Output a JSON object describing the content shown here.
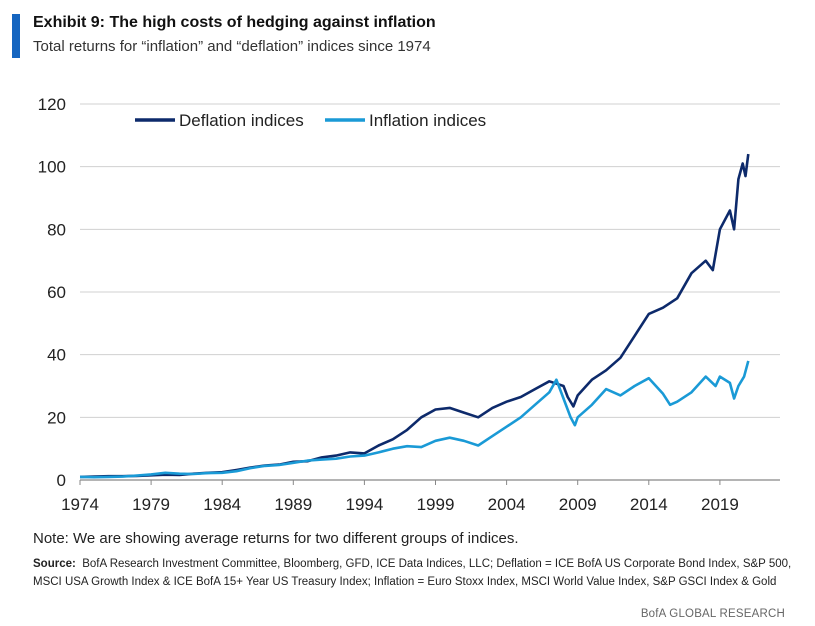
{
  "header": {
    "title": "Exhibit 9: The high costs of hedging against inflation",
    "subtitle": "Total returns for “inflation” and “deflation” indices since 1974"
  },
  "footer": {
    "note": "Note: We are showing average returns for two different groups of indices.",
    "source_label": "Source:",
    "source_text": "BofA Research Investment Committee, Bloomberg, GFD, ICE Data Indices, LLC; Deflation = ICE BofA US Corporate Bond Index, S&P 500, MSCI USA Growth Index & ICE BofA 15+ Year US Treasury Index; Inflation = Euro Stoxx Index, MSCI World Value Index, S&P GSCI Index & Gold",
    "credit": "BofA GLOBAL RESEARCH"
  },
  "colors": {
    "accent": "#1565c0",
    "deflation": "#0d2a6b",
    "inflation": "#1a9ad6",
    "grid": "#d0d0d0"
  },
  "chart_data": {
    "type": "line",
    "title": "",
    "xlabel": "",
    "ylabel": "",
    "xlim": [
      1974,
      2021
    ],
    "ylim": [
      0,
      120
    ],
    "xticks": [
      "1974",
      "1979",
      "1984",
      "1989",
      "1994",
      "1999",
      "2004",
      "2009",
      "2014",
      "2019"
    ],
    "yticks": [
      "0",
      "20",
      "40",
      "60",
      "80",
      "100",
      "120"
    ],
    "grid": "horizontal",
    "legend_position": "top-left",
    "series": [
      {
        "name": "Deflation indices",
        "color": "#0d2a6b",
        "points": [
          [
            1974,
            1.0
          ],
          [
            1975,
            1.1
          ],
          [
            1976,
            1.2
          ],
          [
            1977,
            1.2
          ],
          [
            1978,
            1.3
          ],
          [
            1979,
            1.5
          ],
          [
            1980,
            1.7
          ],
          [
            1981,
            1.6
          ],
          [
            1982,
            2.0
          ],
          [
            1983,
            2.3
          ],
          [
            1984,
            2.5
          ],
          [
            1985,
            3.2
          ],
          [
            1986,
            4.0
          ],
          [
            1987,
            4.6
          ],
          [
            1988,
            4.9
          ],
          [
            1989,
            5.8
          ],
          [
            1990,
            6.0
          ],
          [
            1991,
            7.2
          ],
          [
            1992,
            7.8
          ],
          [
            1993,
            8.8
          ],
          [
            1994,
            8.5
          ],
          [
            1995,
            11.0
          ],
          [
            1996,
            13.0
          ],
          [
            1997,
            16.0
          ],
          [
            1998,
            20.0
          ],
          [
            1999,
            22.5
          ],
          [
            2000,
            23.0
          ],
          [
            2001,
            21.5
          ],
          [
            2002,
            20.0
          ],
          [
            2003,
            23.0
          ],
          [
            2004,
            25.0
          ],
          [
            2005,
            26.5
          ],
          [
            2006,
            29.0
          ],
          [
            2007,
            31.5
          ],
          [
            2008,
            30.0
          ],
          [
            2008.3,
            26.5
          ],
          [
            2008.7,
            23.5
          ],
          [
            2009,
            27.0
          ],
          [
            2010,
            32.0
          ],
          [
            2011,
            35.0
          ],
          [
            2012,
            39.0
          ],
          [
            2013,
            46.0
          ],
          [
            2014,
            53.0
          ],
          [
            2015,
            55.0
          ],
          [
            2016,
            58.0
          ],
          [
            2017,
            66.0
          ],
          [
            2018,
            70.0
          ],
          [
            2018.5,
            67.0
          ],
          [
            2019,
            80.0
          ],
          [
            2019.7,
            86.0
          ],
          [
            2020.0,
            80.0
          ],
          [
            2020.3,
            96.0
          ],
          [
            2020.6,
            101.0
          ],
          [
            2020.8,
            97.0
          ],
          [
            2021,
            104.0
          ]
        ]
      },
      {
        "name": "Inflation indices",
        "color": "#1a9ad6",
        "points": [
          [
            1974,
            1.0
          ],
          [
            1975,
            0.9
          ],
          [
            1976,
            1.0
          ],
          [
            1977,
            1.1
          ],
          [
            1978,
            1.4
          ],
          [
            1979,
            1.8
          ],
          [
            1980,
            2.3
          ],
          [
            1981,
            2.0
          ],
          [
            1982,
            1.9
          ],
          [
            1983,
            2.2
          ],
          [
            1984,
            2.3
          ],
          [
            1985,
            2.8
          ],
          [
            1986,
            3.8
          ],
          [
            1987,
            4.5
          ],
          [
            1988,
            4.8
          ],
          [
            1989,
            5.5
          ],
          [
            1990,
            6.2
          ],
          [
            1991,
            6.5
          ],
          [
            1992,
            6.8
          ],
          [
            1993,
            7.5
          ],
          [
            1994,
            7.8
          ],
          [
            1995,
            8.8
          ],
          [
            1996,
            10.0
          ],
          [
            1997,
            10.8
          ],
          [
            1998,
            10.5
          ],
          [
            1999,
            12.5
          ],
          [
            2000,
            13.5
          ],
          [
            2001,
            12.5
          ],
          [
            2002,
            11.0
          ],
          [
            2003,
            14.0
          ],
          [
            2004,
            17.0
          ],
          [
            2005,
            20.0
          ],
          [
            2006,
            24.0
          ],
          [
            2007,
            28.0
          ],
          [
            2007.5,
            32.0
          ],
          [
            2008,
            26.0
          ],
          [
            2008.5,
            20.0
          ],
          [
            2008.8,
            17.5
          ],
          [
            2009,
            20.0
          ],
          [
            2010,
            24.0
          ],
          [
            2011,
            29.0
          ],
          [
            2012,
            27.0
          ],
          [
            2013,
            30.0
          ],
          [
            2014,
            32.5
          ],
          [
            2015,
            27.5
          ],
          [
            2015.5,
            24.0
          ],
          [
            2016,
            25.0
          ],
          [
            2017,
            28.0
          ],
          [
            2018,
            33.0
          ],
          [
            2018.7,
            30.0
          ],
          [
            2019,
            33.0
          ],
          [
            2019.7,
            31.0
          ],
          [
            2020.0,
            26.0
          ],
          [
            2020.3,
            30.0
          ],
          [
            2020.7,
            33.0
          ],
          [
            2021,
            38.0
          ]
        ]
      }
    ]
  }
}
